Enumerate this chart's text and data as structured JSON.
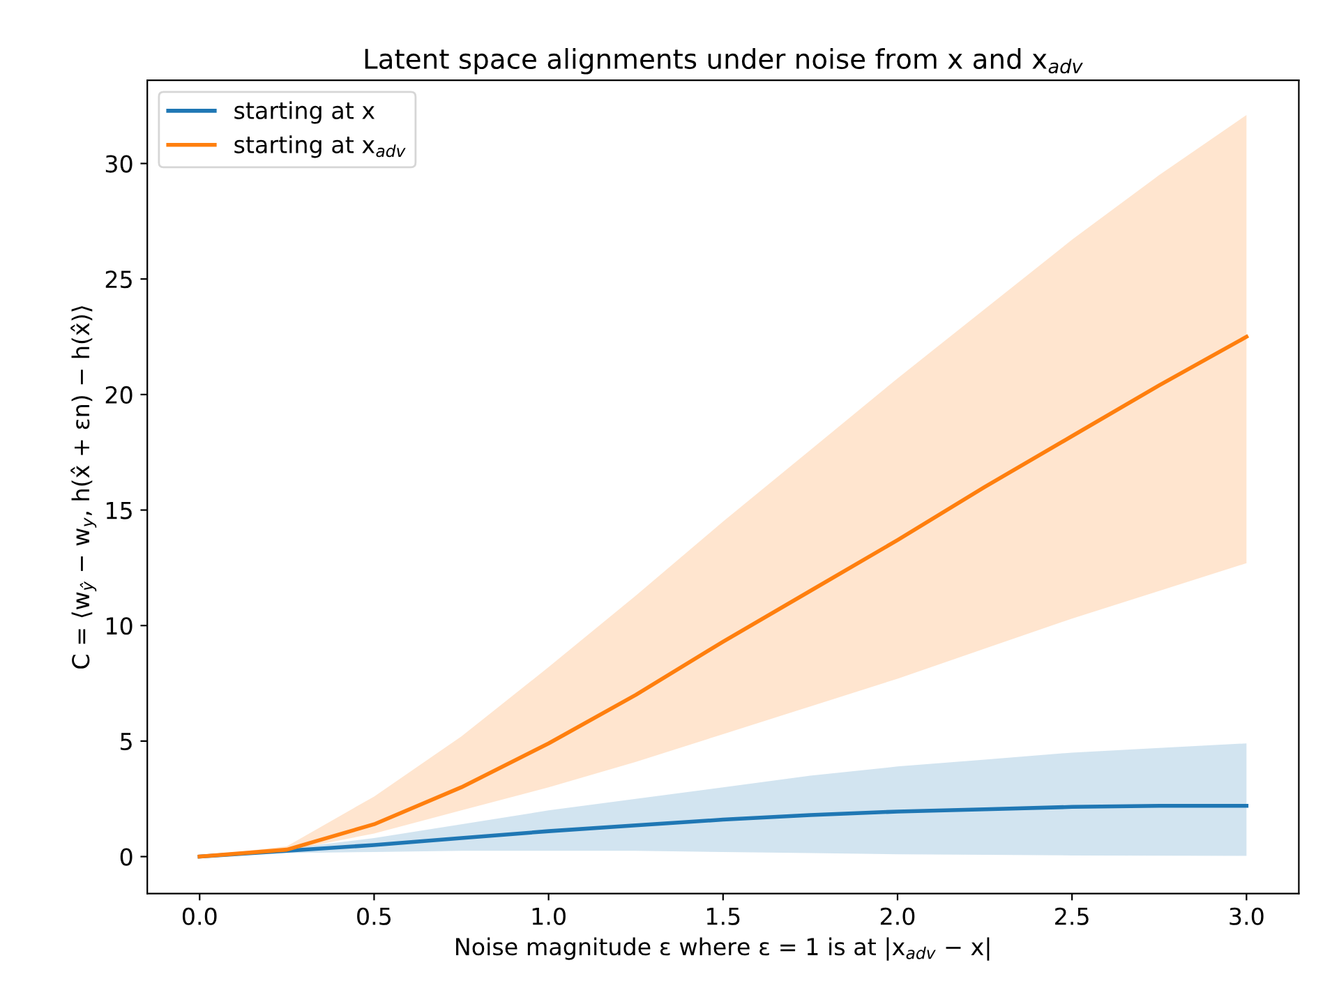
{
  "chart_data": {
    "type": "line",
    "title": "Latent space alignments under noise from x and x$_{adv}$",
    "xlabel": "Noise magnitude ε where ε = 1 is at |x$_{adv}$ − x|",
    "ylabel": "C = ⟨w$_{ŷ}$ − w$_{y}$, h(x̂ + εn) − h(x̂)⟩",
    "x": [
      0,
      0.25,
      0.5,
      0.75,
      1.0,
      1.25,
      1.5,
      1.75,
      2.0,
      2.25,
      2.5,
      2.75,
      3.0
    ],
    "series": [
      {
        "name": "starting at x",
        "color": "#1f77b4",
        "values": [
          0,
          0.25,
          0.5,
          0.8,
          1.1,
          1.35,
          1.6,
          1.8,
          1.95,
          2.05,
          2.15,
          2.2,
          2.2
        ],
        "lower": [
          0,
          0.15,
          0.2,
          0.25,
          0.25,
          0.25,
          0.2,
          0.15,
          0.1,
          0.08,
          0.05,
          0.04,
          0.03
        ],
        "upper": [
          0,
          0.35,
          0.8,
          1.4,
          2.0,
          2.5,
          3.0,
          3.5,
          3.9,
          4.2,
          4.5,
          4.7,
          4.9
        ]
      },
      {
        "name": "starting at x$_{adv}$",
        "color": "#ff7f0e",
        "values": [
          0,
          0.3,
          1.4,
          3.0,
          4.9,
          7.0,
          9.3,
          11.5,
          13.7,
          16.0,
          18.2,
          20.4,
          22.5
        ],
        "lower": [
          0,
          0.25,
          1.0,
          2.0,
          3.0,
          4.1,
          5.3,
          6.5,
          7.7,
          9.0,
          10.3,
          11.5,
          12.7
        ],
        "upper": [
          0,
          0.45,
          2.6,
          5.2,
          8.2,
          11.3,
          14.5,
          17.6,
          20.7,
          23.7,
          26.7,
          29.5,
          32.1
        ]
      }
    ],
    "xlim": [
      -0.15,
      3.15
    ],
    "ylim": [
      -1.6,
      33.6
    ],
    "xticks": [
      {
        "value": 0,
        "label": "0.0"
      },
      {
        "value": 0.5,
        "label": "0.5"
      },
      {
        "value": 1.0,
        "label": "1.0"
      },
      {
        "value": 1.5,
        "label": "1.5"
      },
      {
        "value": 2.0,
        "label": "2.0"
      },
      {
        "value": 2.5,
        "label": "2.5"
      },
      {
        "value": 3.0,
        "label": "3.0"
      }
    ],
    "yticks": [
      0,
      5,
      10,
      15,
      20,
      25,
      30
    ],
    "legend": "top left",
    "grid": false
  }
}
